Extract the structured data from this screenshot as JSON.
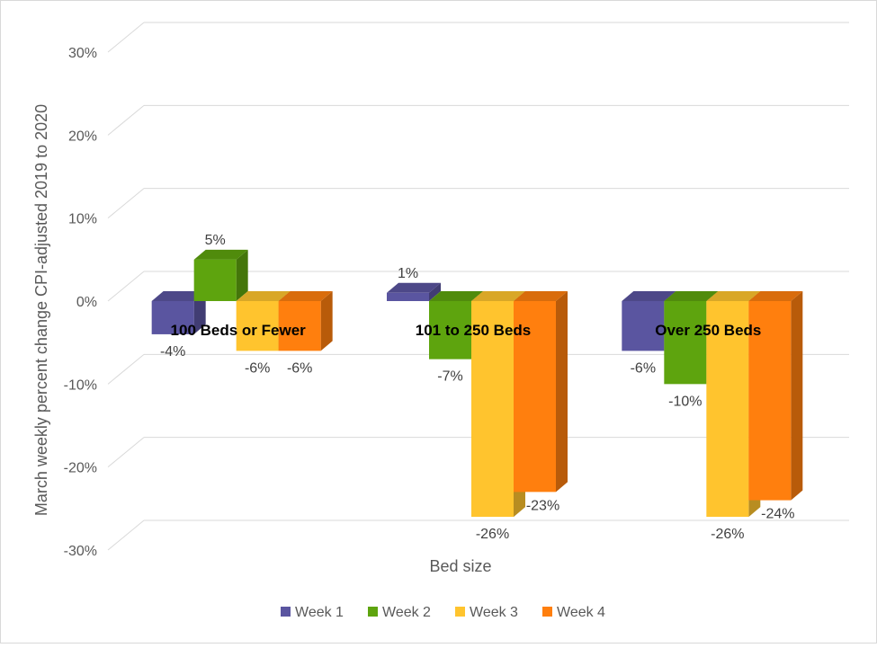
{
  "chart_data": {
    "type": "bar",
    "title": "",
    "xlabel": "Bed size",
    "ylabel": "March weekly percent change CPI-adjusted 2019 to 2020",
    "ylim": [
      -30,
      30
    ],
    "yticks": [
      -30,
      -20,
      -10,
      0,
      10,
      20,
      30
    ],
    "ytick_labels": [
      "-30%",
      "-20%",
      "-10%",
      "0%",
      "10%",
      "20%",
      "30%"
    ],
    "grid": true,
    "legend": "bottom",
    "categories": [
      "100 Beds or Fewer",
      "101 to 250 Beds",
      "Over 250 Beds"
    ],
    "series": [
      {
        "name": "Week 1",
        "color": "#5a55a0",
        "values": [
          -4,
          1,
          -6
        ],
        "labels": [
          "-4%",
          "1%",
          "-6%"
        ]
      },
      {
        "name": "Week 2",
        "color": "#5ea40e",
        "values": [
          5,
          -7,
          -10
        ],
        "labels": [
          "5%",
          "-7%",
          "-10%"
        ]
      },
      {
        "name": "Week 3",
        "color": "#ffc42e",
        "values": [
          -6,
          -26,
          -26
        ],
        "labels": [
          "-6%",
          "-26%",
          "-26%"
        ]
      },
      {
        "name": "Week 4",
        "color": "#ff7f0e",
        "values": [
          -6,
          -23,
          -24
        ],
        "labels": [
          "-6%",
          "-23%",
          "-24%"
        ]
      }
    ]
  }
}
